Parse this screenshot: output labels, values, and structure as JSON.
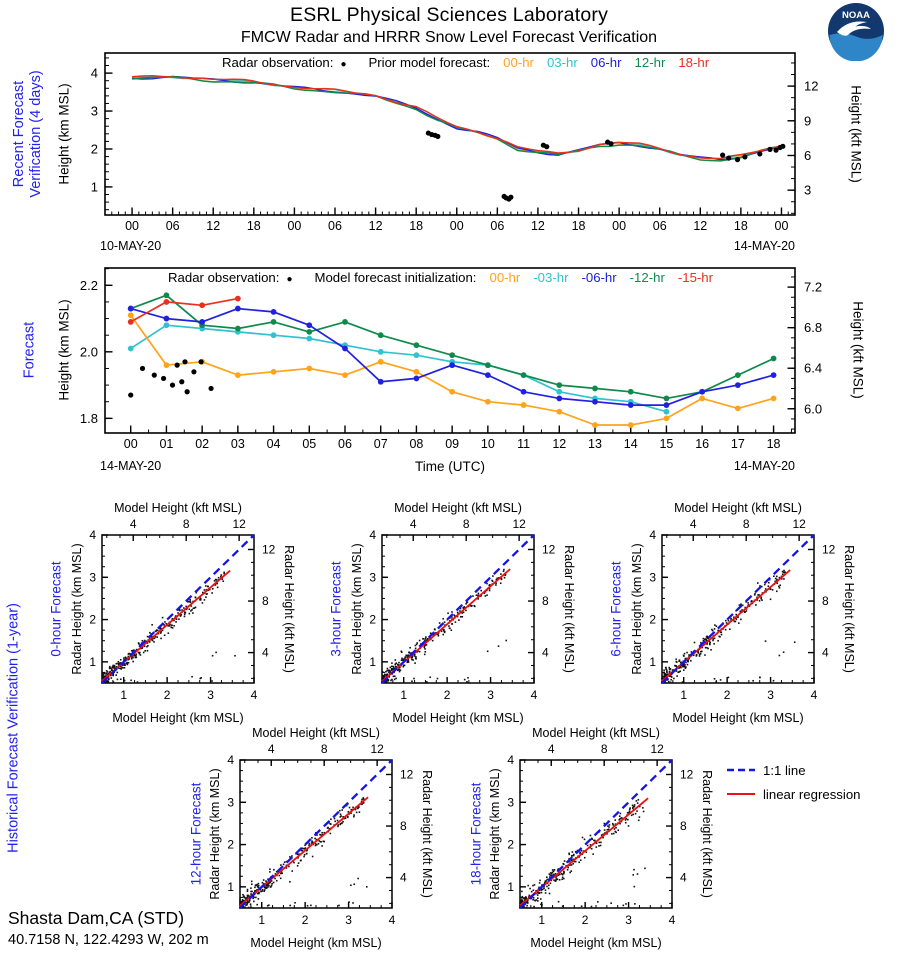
{
  "header": {
    "title": "ESRL Physical Sciences Laboratory",
    "subtitle": "FMCW Radar and HRRR Snow Level Forecast Verification"
  },
  "noaa_logo": {
    "label": "NOAA"
  },
  "station": {
    "name": "Shasta Dam,CA (STD)",
    "location": "40.7158 N, 122.4293 W, 202 m"
  },
  "colors": {
    "label_blue": "#2222EE",
    "one_to_one": "#1515E6",
    "regression": "#EE1111",
    "obs": "#000000"
  },
  "scatter_legend": {
    "one_to_one": "1:1 line",
    "regression": "linear regression"
  },
  "chart_data": [
    {
      "id": "recent_verification",
      "type": "line",
      "side_label_lines": [
        "Recent Forecast",
        "Verification (4 days)"
      ],
      "ylabel_left": "Height (km MSL)",
      "ylabel_right": "Height (kft MSL)",
      "legend": {
        "obs_label": "Radar observation:",
        "obs_marker": "●",
        "model_label": "Prior model forecast:",
        "series_labels": [
          "00-hr",
          "03-hr",
          "06-hr",
          "12-hr",
          "18-hr"
        ]
      },
      "series_colors": [
        "#FFA319",
        "#30C3CE",
        "#2020E0",
        "#0F8A4B",
        "#E8301F"
      ],
      "xlim": [
        -4,
        98
      ],
      "x_major": {
        "values": [
          0,
          6,
          12,
          18,
          24,
          30,
          36,
          42,
          48,
          54,
          60,
          66,
          72,
          78,
          84,
          90,
          96
        ],
        "labels": [
          "00",
          "06",
          "12",
          "18",
          "00",
          "06",
          "12",
          "18",
          "00",
          "06",
          "12",
          "18",
          "00",
          "06",
          "12",
          "18",
          "00"
        ]
      },
      "x_minor_step": 1,
      "date_left": "10-MAY-20",
      "date_right": "14-MAY-20",
      "ylim": [
        0.26,
        4.53
      ],
      "y_major": {
        "values": [
          1,
          2,
          3,
          4
        ],
        "labels": [
          "1",
          "2",
          "3",
          "4"
        ]
      },
      "y_minor_step": 0.2,
      "right_major": {
        "kft_values": [
          3,
          6,
          9,
          12
        ],
        "labels": [
          "3",
          "6",
          "9",
          "12"
        ]
      },
      "right_minor_step_kft": 1,
      "kft_per_km": 3.28084,
      "ensemble_backbone": {
        "t": [
          0,
          6,
          12,
          18,
          24,
          30,
          36,
          42,
          45,
          48,
          51,
          54,
          57,
          60,
          63,
          66,
          69,
          72,
          75,
          78,
          81,
          84,
          87,
          90,
          93,
          96
        ],
        "v": [
          3.87,
          3.9,
          3.82,
          3.76,
          3.62,
          3.52,
          3.4,
          3.08,
          2.8,
          2.56,
          2.45,
          2.28,
          2.02,
          1.92,
          1.86,
          1.96,
          2.1,
          2.15,
          2.1,
          2.0,
          1.85,
          1.76,
          1.72,
          1.8,
          1.95,
          2.08
        ]
      },
      "series_spread": {
        "offsets": [
          -0.012,
          0.012,
          0,
          -0.018,
          0.02
        ],
        "wiggle_amps": [
          0.028,
          0.024,
          0.026,
          0.03,
          0.027
        ],
        "phases": [
          0,
          1.9,
          3.8,
          5.7,
          7.6
        ]
      },
      "radar_obs": [
        [
          43.8,
          2.42
        ],
        [
          44.3,
          2.38
        ],
        [
          44.8,
          2.36
        ],
        [
          45.2,
          2.33
        ],
        [
          55,
          0.75
        ],
        [
          55.3,
          0.71
        ],
        [
          55.7,
          0.68
        ],
        [
          56,
          0.73
        ],
        [
          60.8,
          2.1
        ],
        [
          61.3,
          2.06
        ],
        [
          70.3,
          2.18
        ],
        [
          70.8,
          2.14
        ],
        [
          87.3,
          1.84
        ],
        [
          88.2,
          1.76
        ],
        [
          89.5,
          1.72
        ],
        [
          90.6,
          1.79
        ],
        [
          92.8,
          1.87
        ],
        [
          94.3,
          1.99
        ],
        [
          95.2,
          1.97
        ],
        [
          95.8,
          2.04
        ],
        [
          96.2,
          2.07
        ]
      ]
    },
    {
      "id": "forecast",
      "type": "line",
      "side_label": "Forecast",
      "xlabel": "Time (UTC)",
      "ylabel_left": "Height (km MSL)",
      "ylabel_right": "Height (kft MSL)",
      "legend": {
        "obs_label": "Radar observation:",
        "obs_marker": "●",
        "model_label": "Model forecast initialization:",
        "series_labels": [
          "00-hr",
          "-03-hr",
          "-06-hr",
          "-12-hr",
          "-15-hr"
        ]
      },
      "series_colors": [
        "#FFA319",
        "#30C3CE",
        "#2020E0",
        "#0F8A4B",
        "#E8301F"
      ],
      "xlim": [
        -0.72,
        18.6
      ],
      "x_major": {
        "values": [
          0,
          1,
          2,
          3,
          4,
          5,
          6,
          7,
          8,
          9,
          10,
          11,
          12,
          13,
          14,
          15,
          16,
          17,
          18
        ],
        "labels": [
          "00",
          "01",
          "02",
          "03",
          "04",
          "05",
          "06",
          "07",
          "08",
          "09",
          "10",
          "11",
          "12",
          "13",
          "14",
          "15",
          "16",
          "17",
          "18"
        ]
      },
      "x_minor_step": 0.5,
      "date_left": "14-MAY-20",
      "date_right": "14-MAY-20",
      "ylim": [
        1.756,
        2.252
      ],
      "y_major": {
        "values": [
          1.8,
          2.0,
          2.2
        ],
        "labels": [
          "1.8",
          "2.0",
          "2.2"
        ]
      },
      "y_minor_step": 0.05,
      "right_major": {
        "kft_values": [
          6.0,
          6.4,
          6.8,
          7.2
        ],
        "labels": [
          "6.0",
          "6.4",
          "6.8",
          "7.2"
        ]
      },
      "right_minor_step_kft": 0.1,
      "kft_per_km": 3.28084,
      "series": [
        {
          "label": "00-hr",
          "points": [
            [
              0,
              2.11
            ],
            [
              1,
              1.96
            ],
            [
              2,
              1.97
            ],
            [
              3,
              1.93
            ],
            [
              4,
              1.94
            ],
            [
              5,
              1.95
            ],
            [
              6,
              1.93
            ],
            [
              7,
              1.97
            ],
            [
              8,
              1.94
            ],
            [
              9,
              1.88
            ],
            [
              10,
              1.85
            ],
            [
              11,
              1.84
            ],
            [
              12,
              1.82
            ],
            [
              13,
              1.78
            ],
            [
              14,
              1.78
            ],
            [
              15,
              1.8
            ],
            [
              16,
              1.86
            ],
            [
              17,
              1.83
            ],
            [
              18,
              1.86
            ]
          ]
        },
        {
          "label": "-03-hr",
          "points": [
            [
              0,
              2.01
            ],
            [
              1,
              2.08
            ],
            [
              2,
              2.07
            ],
            [
              3,
              2.06
            ],
            [
              4,
              2.05
            ],
            [
              5,
              2.04
            ],
            [
              6,
              2.02
            ],
            [
              7,
              2.0
            ],
            [
              8,
              1.99
            ],
            [
              9,
              1.97
            ],
            [
              10,
              1.96
            ],
            [
              11,
              1.93
            ],
            [
              12,
              1.88
            ],
            [
              13,
              1.86
            ],
            [
              14,
              1.85
            ],
            [
              15,
              1.82
            ]
          ]
        },
        {
          "label": "-06-hr",
          "points": [
            [
              0,
              2.13
            ],
            [
              1,
              2.1
            ],
            [
              2,
              2.09
            ],
            [
              3,
              2.13
            ],
            [
              4,
              2.12
            ],
            [
              5,
              2.08
            ],
            [
              6,
              2.01
            ],
            [
              7,
              1.91
            ],
            [
              8,
              1.92
            ],
            [
              9,
              1.96
            ],
            [
              10,
              1.93
            ],
            [
              11,
              1.88
            ],
            [
              12,
              1.86
            ],
            [
              13,
              1.85
            ],
            [
              14,
              1.84
            ],
            [
              15,
              1.84
            ],
            [
              16,
              1.88
            ],
            [
              17,
              1.9
            ],
            [
              18,
              1.93
            ]
          ]
        },
        {
          "label": "-12-hr",
          "points": [
            [
              0,
              2.13
            ],
            [
              1,
              2.17
            ],
            [
              2,
              2.08
            ],
            [
              3,
              2.07
            ],
            [
              4,
              2.09
            ],
            [
              5,
              2.06
            ],
            [
              6,
              2.09
            ],
            [
              7,
              2.05
            ],
            [
              8,
              2.02
            ],
            [
              9,
              1.99
            ],
            [
              10,
              1.96
            ],
            [
              11,
              1.93
            ],
            [
              12,
              1.9
            ],
            [
              13,
              1.89
            ],
            [
              14,
              1.88
            ],
            [
              15,
              1.86
            ],
            [
              16,
              1.88
            ],
            [
              17,
              1.93
            ],
            [
              18,
              1.98
            ]
          ]
        },
        {
          "label": "-15-hr",
          "points": [
            [
              0,
              2.09
            ],
            [
              1,
              2.15
            ],
            [
              2,
              2.14
            ],
            [
              3,
              2.16
            ]
          ]
        }
      ],
      "radar_obs": [
        [
          0,
          1.87
        ],
        [
          0.33,
          1.95
        ],
        [
          0.66,
          1.93
        ],
        [
          0.92,
          1.92
        ],
        [
          1.17,
          1.9
        ],
        [
          1.3,
          1.96
        ],
        [
          1.43,
          1.91
        ],
        [
          1.52,
          1.97
        ],
        [
          1.58,
          1.88
        ],
        [
          1.77,
          1.94
        ],
        [
          1.97,
          1.97
        ],
        [
          2.25,
          1.89
        ]
      ]
    },
    {
      "id": "historical_verification",
      "type": "scatter",
      "side_label": "Historical Forecast Verification (1-year)",
      "xlabel_top": "Model Height (kft MSL)",
      "xlabel_bottom": "Model Height (km MSL)",
      "ylabel_left": "Radar Height (km MSL)",
      "ylabel_right": "Radar Height (kft MSL)",
      "xlim": [
        0.5,
        4
      ],
      "ylim": [
        0.5,
        4
      ],
      "major_km": {
        "values": [
          1,
          2,
          3,
          4
        ],
        "labels": [
          "1",
          "2",
          "3",
          "4"
        ]
      },
      "minor_step_km": 0.25,
      "major_kft": {
        "values": [
          4,
          8,
          12
        ],
        "labels": [
          "4",
          "8",
          "12"
        ]
      },
      "minor_step_kft": 1,
      "kft_per_km": 3.28084,
      "one_to_one": {
        "label": "1:1 line",
        "x": [
          0.5,
          4
        ],
        "y": [
          0.5,
          4
        ]
      },
      "regression_label": "linear regression",
      "regression_x_range": [
        0.5,
        3.45
      ],
      "panels": [
        {
          "label": "0-hour Forecast",
          "seed": 101,
          "n_points": 340,
          "regression": {
            "slope": 0.885,
            "intercept": 0.105
          },
          "scatter_sd": 0.095,
          "n_low_outliers": 8,
          "n_right_outliers": 3
        },
        {
          "label": "3-hour Forecast",
          "seed": 202,
          "n_points": 345,
          "regression": {
            "slope": 0.9,
            "intercept": 0.09
          },
          "scatter_sd": 0.1,
          "n_low_outliers": 9,
          "n_right_outliers": 3
        },
        {
          "label": "6-hour Forecast",
          "seed": 303,
          "n_points": 340,
          "regression": {
            "slope": 0.89,
            "intercept": 0.1
          },
          "scatter_sd": 0.105,
          "n_low_outliers": 9,
          "n_right_outliers": 4
        },
        {
          "label": "12-hour Forecast",
          "seed": 404,
          "n_points": 335,
          "regression": {
            "slope": 0.87,
            "intercept": 0.12
          },
          "scatter_sd": 0.115,
          "n_low_outliers": 10,
          "n_right_outliers": 4
        },
        {
          "label": "18-hour Forecast",
          "seed": 505,
          "n_points": 330,
          "regression": {
            "slope": 0.86,
            "intercept": 0.13
          },
          "scatter_sd": 0.125,
          "n_low_outliers": 10,
          "n_right_outliers": 5
        }
      ]
    }
  ]
}
